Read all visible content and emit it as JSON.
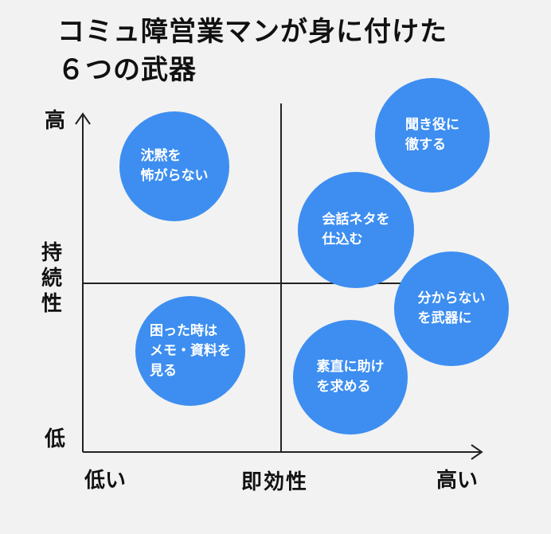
{
  "title": "コミュ障営業マンが身に付けた\n６つの武器",
  "axes": {
    "y_title": "持\n続\n性",
    "y_high": "高",
    "y_low": "低",
    "x_title": "即効性",
    "x_low": "低い",
    "x_high": "高い"
  },
  "bubbles": [
    {
      "label": "沈黙を\n怖がらない"
    },
    {
      "label": "聞き役に\n徹する"
    },
    {
      "label": "会話ネタを\n仕込む"
    },
    {
      "label": "分からない\nを武器に"
    },
    {
      "label": "困った時は\nメモ・資料を\n見る"
    },
    {
      "label": "素直に助け\nを求める"
    }
  ],
  "colors": {
    "bubble": "#3d8ef0",
    "text": "#111111",
    "line": "#222222"
  }
}
